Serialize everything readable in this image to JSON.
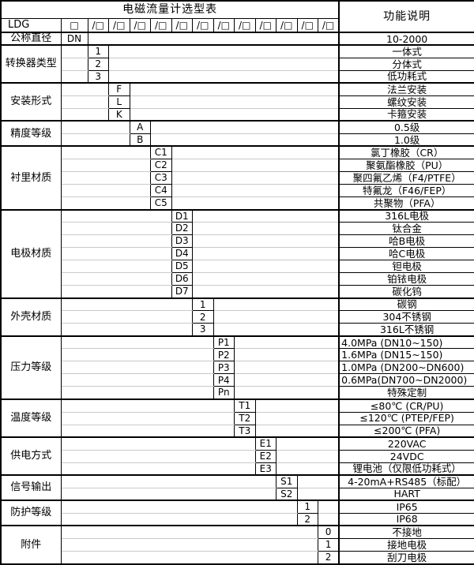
{
  "table": {
    "title": "电磁流量计选型表",
    "function_header": "功能说明",
    "model": {
      "prefix": "LDG",
      "dn_box": "□",
      "slot": "/□",
      "slots": 12
    },
    "groups": [
      {
        "label": "公称直径",
        "col": 1,
        "items": [
          {
            "code": "DN",
            "desc": "10-2000"
          }
        ]
      },
      {
        "label": "转换器类型",
        "col": 2,
        "items": [
          {
            "code": "1",
            "desc": "一体式"
          },
          {
            "code": "2",
            "desc": "分体式"
          },
          {
            "code": "3",
            "desc": "低功耗式"
          }
        ]
      },
      {
        "label": "安装形式",
        "col": 3,
        "items": [
          {
            "code": "F",
            "desc": "法兰安装"
          },
          {
            "code": "L",
            "desc": "螺纹安装"
          },
          {
            "code": "K",
            "desc": "卡箍安装"
          }
        ]
      },
      {
        "label": "精度等级",
        "col": 4,
        "items": [
          {
            "code": "A",
            "desc": "0.5级"
          },
          {
            "code": "B",
            "desc": "1.0级"
          }
        ]
      },
      {
        "label": "衬里材质",
        "col": 5,
        "items": [
          {
            "code": "C1",
            "desc": "氯丁橡胶（CR）"
          },
          {
            "code": "C2",
            "desc": "聚氨酯橡胶（PU）"
          },
          {
            "code": "C3",
            "desc": "聚四氟乙烯（F4/PTFE）"
          },
          {
            "code": "C4",
            "desc": "特氟龙（F46/FEP）"
          },
          {
            "code": "C5",
            "desc": "共聚物（PFA）"
          }
        ]
      },
      {
        "label": "电极材质",
        "col": 6,
        "items": [
          {
            "code": "D1",
            "desc": "316L电极"
          },
          {
            "code": "D2",
            "desc": "钛合金"
          },
          {
            "code": "D3",
            "desc": "哈B电极"
          },
          {
            "code": "D4",
            "desc": "哈C电极"
          },
          {
            "code": "D5",
            "desc": "钽电极"
          },
          {
            "code": "D6",
            "desc": "铂铱电极"
          },
          {
            "code": "D7",
            "desc": "碳化钨"
          }
        ]
      },
      {
        "label": "外壳材质",
        "col": 7,
        "items": [
          {
            "code": "1",
            "desc": "碳钢"
          },
          {
            "code": "2",
            "desc": "304不锈钢"
          },
          {
            "code": "3",
            "desc": "316L不锈钢"
          }
        ]
      },
      {
        "label": "压力等级",
        "col": 8,
        "items": [
          {
            "code": "P1",
            "desc": "4.0MPa (DN10~150)",
            "align": "left"
          },
          {
            "code": "P2",
            "desc": "1.6MPa (DN15~150)",
            "align": "left"
          },
          {
            "code": "P3",
            "desc": "1.0MPa (DN200~DN600)",
            "align": "left"
          },
          {
            "code": "P4",
            "desc": "0.6MPa(DN700~DN2000)",
            "align": "left"
          },
          {
            "code": "Pn",
            "desc": "特殊定制"
          }
        ]
      },
      {
        "label": "温度等级",
        "col": 9,
        "items": [
          {
            "code": "T1",
            "desc": "≤80℃ (CR/PU)"
          },
          {
            "code": "T2",
            "desc": "≤120℃ (PTEP/FEP)"
          },
          {
            "code": "T3",
            "desc": "≤200℃ (PFA)"
          }
        ]
      },
      {
        "label": "供电方式",
        "col": 10,
        "items": [
          {
            "code": "E1",
            "desc": "220VAC"
          },
          {
            "code": "E2",
            "desc": "24VDC"
          },
          {
            "code": "E3",
            "desc": "锂电池（仅限低功耗式）"
          }
        ]
      },
      {
        "label": "信号输出",
        "col": 11,
        "items": [
          {
            "code": "S1",
            "desc": "4-20mA+RS485（标配）"
          },
          {
            "code": "S2",
            "desc": "HART"
          }
        ]
      },
      {
        "label": "防护等级",
        "col": 12,
        "items": [
          {
            "code": "1",
            "desc": "IP65"
          },
          {
            "code": "2",
            "desc": "IP68"
          }
        ]
      },
      {
        "label": "附件",
        "col": 13,
        "items": [
          {
            "code": "0",
            "desc": "不接地"
          },
          {
            "code": "1",
            "desc": "接地电极"
          },
          {
            "code": "2",
            "desc": "刮刀电极"
          }
        ]
      }
    ]
  }
}
